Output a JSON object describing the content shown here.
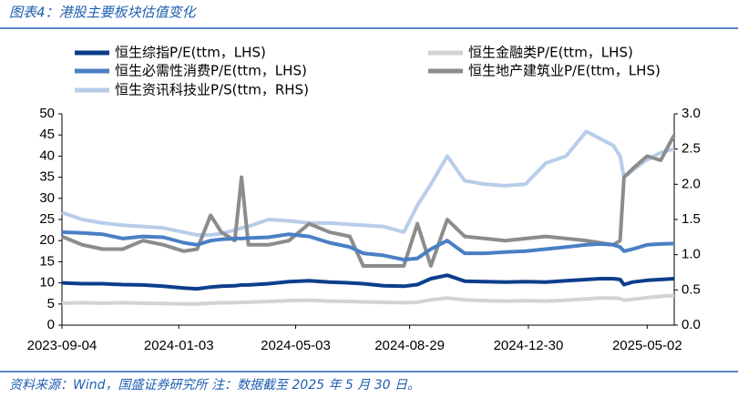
{
  "chart_data": {
    "type": "line",
    "title": "图表4：港股主要板块估值变化",
    "source": "资料来源：Wind，国盛证券研究所   注：数据截至 2025 年 5 月 30 日。",
    "x": [
      "2023-09-04",
      "2023-09-25",
      "2023-10-16",
      "2023-11-06",
      "2023-11-27",
      "2023-12-18",
      "2024-01-08",
      "2024-01-22",
      "2024-02-05",
      "2024-02-16",
      "2024-03-01",
      "2024-03-08",
      "2024-03-15",
      "2024-04-05",
      "2024-04-26",
      "2024-05-17",
      "2024-06-07",
      "2024-06-28",
      "2024-07-12",
      "2024-08-02",
      "2024-08-23",
      "2024-09-06",
      "2024-09-20",
      "2024-10-07",
      "2024-10-25",
      "2024-11-15",
      "2024-12-06",
      "2024-12-27",
      "2025-01-17",
      "2025-02-07",
      "2025-02-28",
      "2025-03-14",
      "2025-03-28",
      "2025-04-04",
      "2025-04-08",
      "2025-04-17",
      "2025-05-02",
      "2025-05-16",
      "2025-05-30"
    ],
    "xlim": [
      "2023-09-04",
      "2025-05-30"
    ],
    "xticks": [
      "2023-09-04",
      "2024-01-03",
      "2024-05-03",
      "2024-08-29",
      "2024-12-30",
      "2025-05-02"
    ],
    "ylim": [
      0,
      50
    ],
    "yticks": [
      0,
      5,
      10,
      15,
      20,
      25,
      30,
      35,
      40,
      45,
      50
    ],
    "y2lim": [
      0,
      3
    ],
    "y2ticks": [
      {
        "value": 0,
        "label": "0.0"
      },
      0.5,
      {
        "value": 1,
        "label": "1.0"
      },
      1.5,
      {
        "value": 2,
        "label": "2.0"
      },
      2.5,
      {
        "value": 3,
        "label": "3.0"
      }
    ],
    "series": [
      {
        "name": "恒生综指P/E(ttm，LHS)",
        "color": "#0d3e8c",
        "width": 4,
        "values": [
          10,
          9.8,
          9.8,
          9.6,
          9.5,
          9.2,
          8.8,
          8.6,
          9,
          9.2,
          9.3,
          9.5,
          9.5,
          9.8,
          10.3,
          10.5,
          10.2,
          10,
          9.8,
          9.3,
          9.2,
          9.6,
          11,
          11.8,
          10.4,
          10.3,
          10.2,
          10.3,
          10.2,
          10.5,
          10.8,
          11,
          11,
          10.8,
          9.6,
          10.2,
          10.6,
          10.8,
          11
        ]
      },
      {
        "name": "恒生金融类P/E(ttm，LHS)",
        "color": "#d3d3d3",
        "width": 4,
        "values": [
          5.2,
          5.3,
          5.2,
          5.3,
          5.2,
          5.1,
          5.0,
          5.0,
          5.2,
          5.3,
          5.3,
          5.4,
          5.4,
          5.6,
          5.8,
          5.9,
          5.7,
          5.6,
          5.5,
          5.4,
          5.3,
          5.4,
          6.0,
          6.4,
          6.0,
          5.8,
          5.7,
          5.8,
          5.7,
          5.9,
          6.2,
          6.4,
          6.4,
          6.3,
          5.9,
          6.1,
          6.5,
          6.8,
          7.0
        ]
      },
      {
        "name": "恒生必需性消费P/E(ttm，LHS)",
        "color": "#4a7fc4",
        "width": 4,
        "values": [
          22,
          21.8,
          21.5,
          20.5,
          21,
          20.8,
          19.5,
          19,
          20,
          20.3,
          20.5,
          20.5,
          20.6,
          20.8,
          21.5,
          21,
          19.5,
          18.5,
          17,
          16.5,
          15.5,
          15.8,
          18,
          20,
          17,
          17,
          17.3,
          17.5,
          18,
          18.5,
          19,
          19.2,
          19,
          18.5,
          17.5,
          18,
          19,
          19.2,
          19.3
        ]
      },
      {
        "name": "恒生地产建筑业P/E(ttm，LHS)",
        "color": "#8c8c8c",
        "width": 4,
        "values": [
          21,
          19,
          18,
          18,
          20,
          19,
          17.5,
          18,
          26,
          22,
          20,
          35,
          19,
          19,
          20,
          24,
          22,
          21,
          14,
          14,
          14,
          24,
          14,
          25,
          21,
          20.5,
          20,
          20.5,
          21,
          20.5,
          20,
          19.5,
          19,
          20,
          35,
          37,
          40,
          39,
          45
        ]
      },
      {
        "name": "恒生资讯科技业P/S(ttm，RHS)",
        "color": "#b8cdea",
        "width": 4,
        "axis": "y2",
        "values": [
          1.6,
          1.5,
          1.45,
          1.42,
          1.4,
          1.38,
          1.32,
          1.28,
          1.28,
          1.3,
          1.35,
          1.38,
          1.4,
          1.5,
          1.48,
          1.45,
          1.45,
          1.43,
          1.42,
          1.4,
          1.32,
          1.7,
          2.0,
          2.4,
          2.05,
          2.0,
          1.98,
          2.0,
          2.3,
          2.4,
          2.75,
          2.65,
          2.55,
          2.4,
          2.1,
          2.2,
          2.35,
          2.45,
          2.5
        ]
      }
    ]
  }
}
